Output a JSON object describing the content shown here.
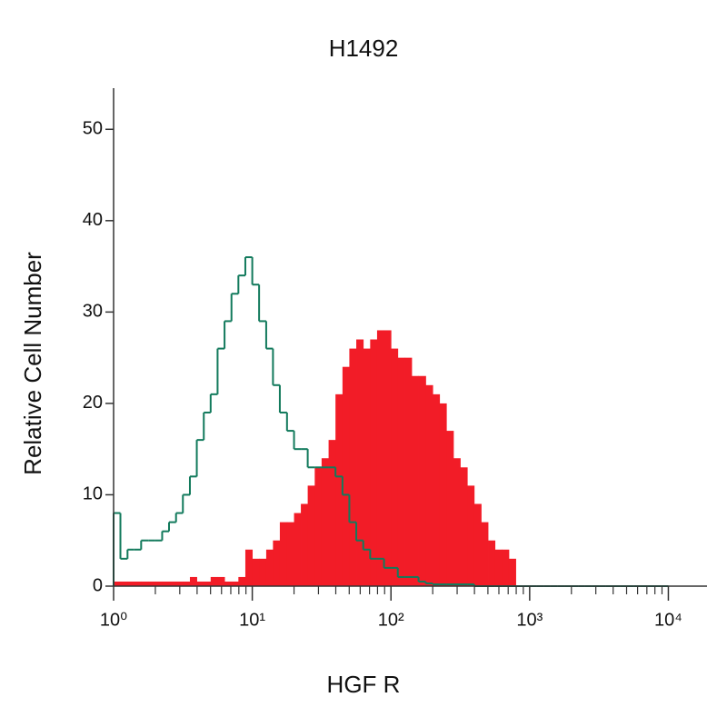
{
  "chart_data": {
    "type": "histogram",
    "title": "H1492",
    "xlabel": "HGF R",
    "ylabel": "Relative Cell Number",
    "xscale": "log",
    "xlim": [
      1,
      19000
    ],
    "ylim": [
      0,
      55
    ],
    "xticks": [
      {
        "value": 1,
        "label": "10⁰"
      },
      {
        "value": 10,
        "label": "10¹"
      },
      {
        "value": 100,
        "label": "10²"
      },
      {
        "value": 1000,
        "label": "10³"
      },
      {
        "value": 10000,
        "label": "10⁴"
      }
    ],
    "xminorticks": [
      2,
      3,
      4,
      5,
      6,
      7,
      8,
      9,
      20,
      30,
      40,
      50,
      60,
      70,
      80,
      90,
      200,
      300,
      400,
      500,
      600,
      700,
      800,
      900,
      2000,
      3000,
      4000,
      5000,
      6000,
      7000,
      8000,
      9000
    ],
    "yticks": [
      0,
      10,
      20,
      30,
      40,
      50
    ],
    "bins": [
      1,
      1.12,
      1.26,
      1.41,
      1.58,
      1.78,
      2,
      2.24,
      2.51,
      2.82,
      3.16,
      3.55,
      3.98,
      4.47,
      5.01,
      5.62,
      6.31,
      7.08,
      7.94,
      8.91,
      10,
      11.2,
      12.6,
      14.1,
      15.8,
      17.8,
      20,
      22.4,
      25.1,
      28.2,
      31.6,
      35.5,
      39.8,
      44.7,
      50.1,
      56.2,
      63.1,
      70.8,
      79.4,
      89.1,
      100,
      112,
      126,
      141,
      158,
      178,
      200,
      224,
      251,
      282,
      316,
      355,
      398,
      447,
      501,
      562,
      631,
      708,
      794,
      891,
      1000,
      1120,
      1260,
      1410,
      1580,
      1780,
      2000,
      2240,
      2510,
      2820,
      3160,
      3550,
      3980,
      4470,
      5010,
      5620,
      6310,
      7080,
      7940,
      8910,
      10000
    ],
    "series": [
      {
        "color": "#f21c27",
        "fill": true,
        "values": [
          0.5,
          0.5,
          0.5,
          0.5,
          0.5,
          0.5,
          0.5,
          0.5,
          0.5,
          0.5,
          0.5,
          1,
          0.5,
          0.5,
          1,
          1,
          0.5,
          0.5,
          1,
          4,
          3,
          3,
          4,
          5,
          7,
          7,
          8,
          9,
          11,
          13,
          14,
          16,
          21,
          24,
          26,
          27,
          26,
          27,
          28,
          28,
          26,
          25,
          25,
          23,
          23,
          22,
          21,
          20,
          17,
          14,
          13,
          11,
          9,
          7,
          5,
          4,
          4,
          3,
          0,
          0,
          0,
          0,
          0,
          0,
          0,
          0,
          0,
          0,
          0,
          0,
          0,
          0,
          0,
          0,
          0,
          0,
          0,
          0,
          0,
          0
        ]
      },
      {
        "color": "#127a5c",
        "fill": false,
        "values": [
          8,
          3,
          4,
          4,
          5,
          5,
          5,
          6,
          7,
          8,
          10,
          12,
          16,
          19,
          21,
          26,
          29,
          32,
          34,
          36,
          33,
          29,
          26,
          22,
          19,
          17,
          15,
          15,
          13,
          13,
          13,
          13,
          12,
          10,
          7,
          5,
          4,
          3,
          3,
          2,
          2,
          1,
          1,
          1,
          0.5,
          0.3,
          0.2,
          0.2,
          0.2,
          0.2,
          0.2,
          0.2,
          0,
          0,
          0,
          0,
          0,
          0,
          0,
          0,
          0,
          0,
          0,
          0,
          0,
          0,
          0,
          0,
          0,
          0,
          0,
          0,
          0,
          0,
          0,
          0,
          0,
          0,
          0,
          0
        ]
      }
    ]
  }
}
